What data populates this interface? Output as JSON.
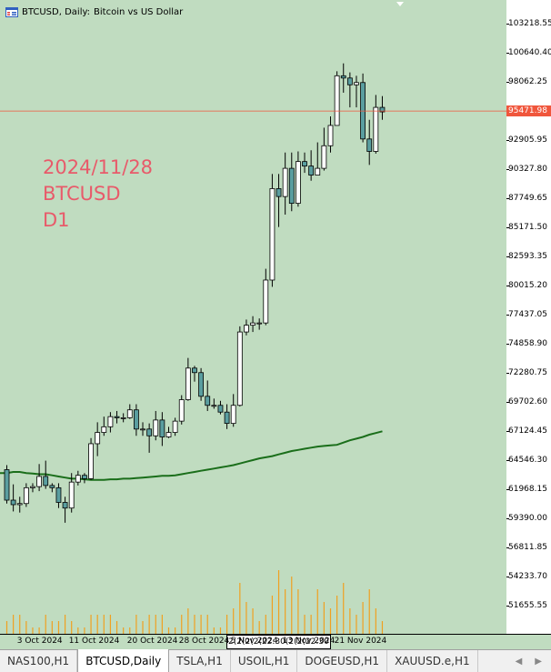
{
  "title": {
    "symbol_period": "BTCUSD, Daily:",
    "description": "Bitcoin vs US Dollar"
  },
  "watermark": {
    "date": "2024/11/28",
    "symbol": "BTCUSD",
    "timeframe": "D1"
  },
  "price_axis": {
    "labels": [
      "103218.55",
      "100640.40",
      "98062.25",
      "95471.98",
      "92905.95",
      "90327.80",
      "87749.65",
      "85171.50",
      "82593.35",
      "80015.20",
      "77437.05",
      "74858.90",
      "72280.75",
      "69702.60",
      "67124.45",
      "64546.30",
      "61968.15",
      "59390.00",
      "56811.85",
      "54233.70",
      "51655.55"
    ],
    "current_price": "95471.98"
  },
  "time_axis": {
    "labels": [
      "3 Oct 2024",
      "11 Oct 2024",
      "20 Oct 2024",
      "28 Oct 2024",
      "5 Nov 2024",
      "13 Nov 2024",
      "21 Nov 2024"
    ],
    "overlap_text": "2(2(2(2(22:30(2(2(22:30"
  },
  "colors": {
    "background": "#c0dcc0",
    "bull_candle": "#ffffff",
    "bear_candle": "#5a9ea0",
    "moving_average": "#1a6e1a",
    "current_price_line": "#f0563c",
    "volume": "#f0a020",
    "watermark": "#e85a6a"
  },
  "icons": {
    "title": "chart-window-icon",
    "dropdown": "dropdown-arrow-icon",
    "scroll_left": "scroll-left-icon",
    "scroll_right": "scroll-right-icon"
  },
  "chart_data": {
    "type": "candlestick",
    "title": "BTCUSD, Daily: Bitcoin vs US Dollar",
    "ylim": [
      49900,
      105000
    ],
    "x": [
      "2024-10-01",
      "2024-10-02",
      "2024-10-03",
      "2024-10-04",
      "2024-10-05",
      "2024-10-06",
      "2024-10-07",
      "2024-10-08",
      "2024-10-09",
      "2024-10-10",
      "2024-10-11",
      "2024-10-12",
      "2024-10-13",
      "2024-10-14",
      "2024-10-15",
      "2024-10-16",
      "2024-10-17",
      "2024-10-18",
      "2024-10-19",
      "2024-10-20",
      "2024-10-21",
      "2024-10-22",
      "2024-10-23",
      "2024-10-24",
      "2024-10-25",
      "2024-10-26",
      "2024-10-27",
      "2024-10-28",
      "2024-10-29",
      "2024-10-30",
      "2024-10-31",
      "2024-11-01",
      "2024-11-02",
      "2024-11-03",
      "2024-11-04",
      "2024-11-05",
      "2024-11-06",
      "2024-11-07",
      "2024-11-08",
      "2024-11-09",
      "2024-11-10",
      "2024-11-11",
      "2024-11-12",
      "2024-11-13",
      "2024-11-14",
      "2024-11-15",
      "2024-11-16",
      "2024-11-17",
      "2024-11-18",
      "2024-11-19",
      "2024-11-20",
      "2024-11-21",
      "2024-11-22",
      "2024-11-23",
      "2024-11-24",
      "2024-11-25",
      "2024-11-26",
      "2024-11-27",
      "2024-11-28"
    ],
    "series": [
      {
        "name": "open",
        "values": [
          63700,
          61000,
          60600,
          60700,
          62100,
          62200,
          63100,
          62300,
          62100,
          60800,
          60300,
          62600,
          63200,
          62900,
          66000,
          67000,
          67500,
          68400,
          68300,
          68300,
          69000,
          67300,
          67300,
          66700,
          68100,
          66600,
          67000,
          68000,
          69900,
          72700,
          72300,
          70200,
          69400,
          69400,
          68800,
          67800,
          69400,
          75900,
          76500,
          76700,
          76700,
          80500,
          88600,
          87900,
          90400,
          87300,
          91000,
          90600,
          89800,
          90400,
          92400,
          94200,
          98600,
          98400,
          97800,
          98000,
          93000,
          91900,
          95800
        ]
      },
      {
        "name": "close",
        "values": [
          61000,
          60600,
          60700,
          62100,
          62200,
          63100,
          62300,
          62100,
          60800,
          60300,
          62600,
          63200,
          62900,
          66000,
          67000,
          67500,
          68400,
          68300,
          68300,
          69000,
          67300,
          67300,
          66700,
          68100,
          66600,
          67000,
          68000,
          69900,
          72700,
          72300,
          70200,
          69400,
          69400,
          68800,
          67800,
          69400,
          75900,
          76500,
          76700,
          76700,
          80500,
          88600,
          87900,
          90400,
          87300,
          91000,
          90600,
          89800,
          90400,
          92400,
          94200,
          98600,
          98400,
          97800,
          98000,
          93000,
          91900,
          95800,
          95400
        ]
      },
      {
        "name": "high",
        "values": [
          64100,
          62400,
          61300,
          62500,
          62500,
          64200,
          64500,
          62500,
          62500,
          61300,
          63400,
          63600,
          63400,
          66500,
          67900,
          68400,
          68800,
          68900,
          68700,
          69500,
          69500,
          67900,
          67800,
          68900,
          68800,
          67500,
          68300,
          70300,
          73600,
          72900,
          72700,
          71600,
          70000,
          69800,
          69500,
          70400,
          76400,
          77000,
          77300,
          77100,
          81500,
          89900,
          89900,
          91800,
          91800,
          91900,
          91800,
          92000,
          92700,
          94000,
          95000,
          99000,
          99700,
          98900,
          98600,
          98800,
          94700,
          96900,
          96800
        ]
      },
      {
        "name": "low",
        "values": [
          60700,
          60000,
          59900,
          60400,
          61700,
          61800,
          62000,
          61700,
          60300,
          59000,
          59900,
          62300,
          62500,
          62800,
          64900,
          66700,
          67000,
          67800,
          67900,
          68200,
          66700,
          66700,
          65200,
          66300,
          65800,
          66500,
          66700,
          67700,
          69800,
          71500,
          69800,
          68900,
          69100,
          68600,
          67300,
          67500,
          69300,
          75600,
          75900,
          76100,
          76500,
          79900,
          85200,
          86300,
          86600,
          87000,
          90000,
          89300,
          89800,
          90200,
          91800,
          94200,
          97100,
          95800,
          95800,
          92700,
          90700,
          91700,
          94700
        ]
      }
    ],
    "moving_average": {
      "type": "line",
      "values": [
        63400,
        63500,
        63500,
        63400,
        63350,
        63300,
        63300,
        63200,
        63100,
        63000,
        62900,
        62900,
        62850,
        62800,
        62800,
        62800,
        62850,
        62850,
        62900,
        62900,
        62950,
        63000,
        63050,
        63100,
        63150,
        63150,
        63200,
        63300,
        63400,
        63500,
        63600,
        63700,
        63800,
        63900,
        64000,
        64100,
        64250,
        64400,
        64550,
        64700,
        64800,
        64900,
        65050,
        65200,
        65350,
        65450,
        65550,
        65650,
        65750,
        65800,
        65850,
        65900,
        66100,
        66300,
        66450,
        66600,
        66800,
        66950,
        67100
      ]
    },
    "volume": {
      "type": "bar",
      "values": [
        2,
        3,
        3,
        2,
        1,
        1,
        3,
        2,
        2,
        3,
        2,
        1,
        1,
        3,
        3,
        3,
        3,
        2,
        1,
        1,
        3,
        2,
        3,
        3,
        3,
        1,
        1,
        3,
        4,
        3,
        3,
        3,
        1,
        1,
        3,
        4,
        8,
        5,
        4,
        2,
        3,
        6,
        10,
        7,
        9,
        7,
        3,
        3,
        7,
        5,
        4,
        6,
        8,
        4,
        3,
        5,
        7,
        4,
        2
      ]
    }
  }
}
